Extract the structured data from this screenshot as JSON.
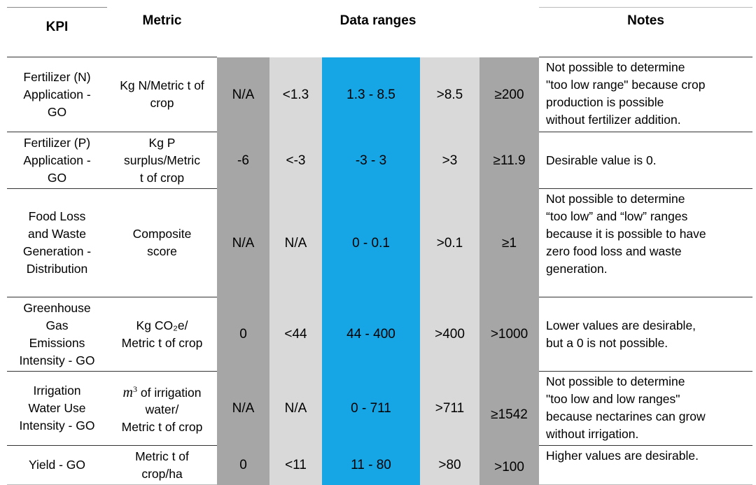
{
  "header": {
    "kpi": "KPI",
    "metric": "Metric",
    "ranges": "Data ranges",
    "notes": "Notes"
  },
  "colors": {
    "dark_gray": "#a6a6a6",
    "light_gray": "#d9d9d9",
    "blue": "#16a5e5"
  },
  "rows": [
    {
      "kpi": [
        "Fertilizer (N)",
        "Application -",
        "GO"
      ],
      "metric": [
        "Kg N/Metric t of",
        "crop"
      ],
      "ranges": [
        "N/A",
        "<1.3",
        "1.3 - 8.5",
        ">8.5",
        "≥200"
      ],
      "notes": [
        "Not possible to determine",
        "\"too low range\" because crop",
        "production is possible",
        "without fertilizer addition."
      ]
    },
    {
      "kpi": [
        "Fertilizer (P)",
        "Application -",
        "GO"
      ],
      "metric": [
        "Kg P",
        "surplus/Metric",
        "t of crop"
      ],
      "ranges": [
        "-6",
        "<-3",
        "-3 - 3",
        ">3",
        "≥11.9"
      ],
      "notes": [
        "Desirable value is 0."
      ]
    },
    {
      "kpi": [
        "Food Loss",
        "and Waste",
        "Generation -",
        "Distribution"
      ],
      "metric": [
        "Composite",
        "score"
      ],
      "ranges": [
        "N/A",
        "N/A",
        "0 - 0.1",
        ">0.1",
        "≥1"
      ],
      "notes": [
        "Not possible to determine",
        "“too low” and “low” ranges",
        "because it is possible to have",
        "zero food loss and waste",
        "generation."
      ]
    },
    {
      "kpi": [
        "Greenhouse",
        "Gas",
        "Emissions",
        "Intensity - GO"
      ],
      "metric": [
        "Kg CO₂e/",
        "Metric t of crop"
      ],
      "ranges": [
        "0",
        "<44",
        "44 - 400",
        ">400",
        ">1000"
      ],
      "notes": [
        "Lower values are desirable,",
        "but a 0 is not possible."
      ]
    },
    {
      "kpi": [
        "Irrigation",
        "Water Use",
        "Intensity - GO"
      ],
      "metric_m": "m",
      "metric_sup": "3",
      "metric": [
        " of irrigation",
        "water/",
        "Metric t of crop"
      ],
      "ranges": [
        "N/A",
        "N/A",
        "0 - 711",
        ">711",
        "≥1542"
      ],
      "notes": [
        "Not possible to determine",
        "\"too low and low ranges\"",
        "because nectarines can grow",
        "without irrigation."
      ]
    },
    {
      "kpi": [
        "Yield - GO"
      ],
      "metric": [
        "Metric t of",
        "crop/ha"
      ],
      "ranges": [
        "0",
        "<11",
        "11 - 80",
        ">80",
        ">100"
      ],
      "notes": [
        "Higher values are desirable."
      ]
    }
  ]
}
